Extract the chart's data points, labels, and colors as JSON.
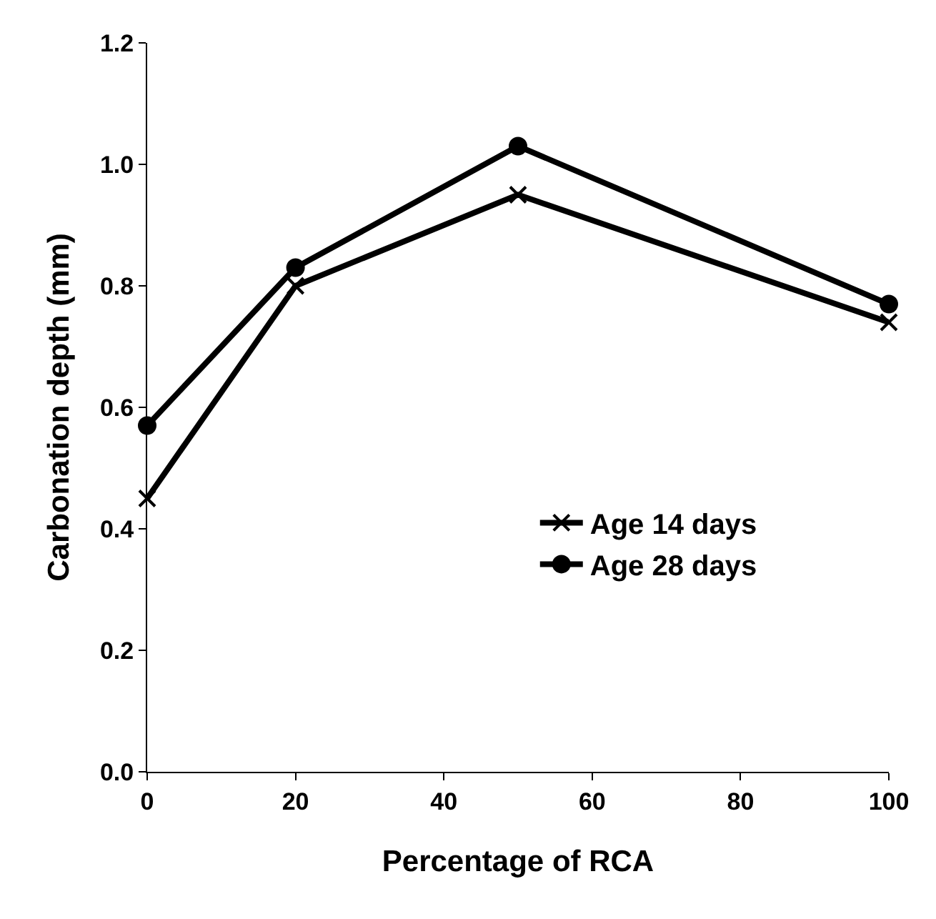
{
  "chart_data": {
    "type": "line",
    "xlabel": "Percentage of RCA",
    "ylabel": "Carbonation depth (mm)",
    "x": [
      0,
      20,
      50,
      100
    ],
    "series": [
      {
        "name": "Age 14 days",
        "color": "#000000",
        "marker": "cross",
        "values": [
          0.45,
          0.8,
          0.95,
          0.74
        ]
      },
      {
        "name": "Age 28 days",
        "color": "#000000",
        "marker": "circle",
        "values": [
          0.57,
          0.83,
          1.03,
          0.77
        ]
      }
    ],
    "xlim": [
      0,
      100
    ],
    "xticks": [
      0,
      20,
      40,
      60,
      80,
      100
    ],
    "ylim": [
      0,
      1.2
    ],
    "yticks": [
      {
        "value": 0,
        "label": "0.0"
      },
      {
        "value": 0.2,
        "label": "0.2"
      },
      {
        "value": 0.4,
        "label": "0.4"
      },
      {
        "value": 0.6,
        "label": "0.6"
      },
      {
        "value": 0.8,
        "label": "0.8"
      },
      {
        "value": 1.0,
        "label": "1.0"
      },
      {
        "value": 1.2,
        "label": "1.2"
      }
    ],
    "legend": "bottom right",
    "line_style": "solid"
  }
}
